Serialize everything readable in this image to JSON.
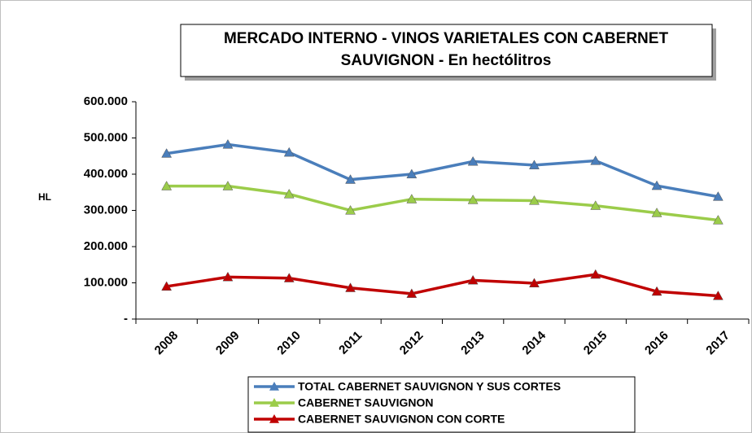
{
  "chart_data": {
    "type": "line",
    "title": [
      "MERCADO INTERNO - VINOS VARIETALES CON CABERNET",
      "SAUVIGNON - En hectólitros"
    ],
    "y_label": "HL",
    "categories": [
      "2008",
      "2009",
      "2010",
      "2011",
      "2012",
      "2013",
      "2014",
      "2015",
      "2016",
      "2017"
    ],
    "series": [
      {
        "name": "TOTAL CABERNET SAUVIGNON Y SUS CORTES",
        "color": "#4a7ebb",
        "values": [
          457000,
          482000,
          460000,
          385000,
          400000,
          435000,
          425000,
          437000,
          368000,
          338000
        ]
      },
      {
        "name": "CABERNET SAUVIGNON",
        "color": "#9bcc4a",
        "values": [
          367000,
          367000,
          345000,
          300000,
          331000,
          329000,
          327000,
          313000,
          293000,
          273000
        ]
      },
      {
        "name": "CABERNET SAUVIGNON  CON CORTE",
        "color": "#c00000",
        "values": [
          90000,
          116000,
          113000,
          86000,
          70000,
          107000,
          99000,
          123000,
          76000,
          64000
        ]
      }
    ],
    "ylim": [
      0,
      600000
    ],
    "yticks": [
      {
        "value": 0,
        "label": "-"
      },
      {
        "value": 100000,
        "label": "100.000"
      },
      {
        "value": 200000,
        "label": "200.000"
      },
      {
        "value": 300000,
        "label": "300.000"
      },
      {
        "value": 400000,
        "label": "400.000"
      },
      {
        "value": 500000,
        "label": "500.000"
      },
      {
        "value": 600000,
        "label": "600.000"
      }
    ],
    "legend": "bottom",
    "grid": false
  }
}
